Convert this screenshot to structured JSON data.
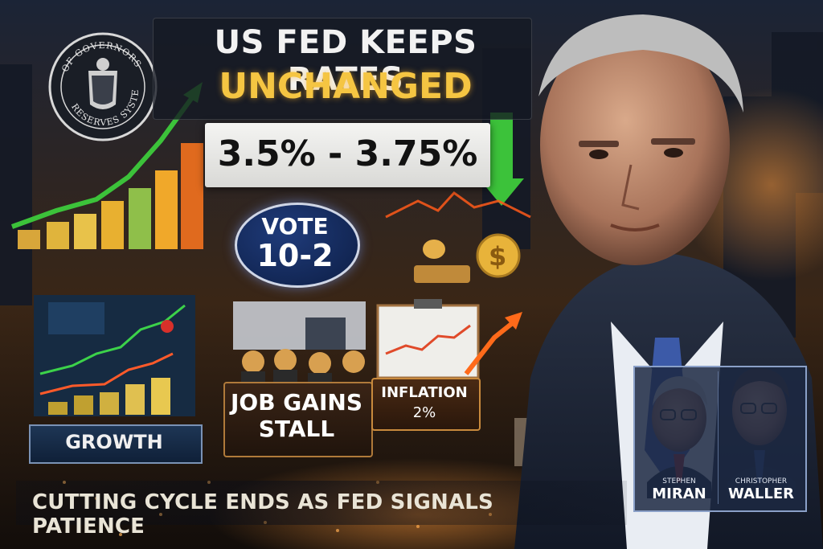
{
  "headline": {
    "line1": "US FED KEEPS RATES",
    "line2": "UNCHANGED"
  },
  "rate_range": "3.5% - 3.75%",
  "vote": {
    "label": "VOTE",
    "tally": "10-2"
  },
  "seal": {
    "top_text": "GOVERNORS",
    "bottom_text": "RESERVES"
  },
  "panels": {
    "growth": "GROWTH",
    "jobs_line1": "JOB GAINS",
    "jobs_line2": "STALL",
    "inflation_label": "INFLATION",
    "inflation_value": "2%"
  },
  "tagline": "CUTTING CYCLE ENDS AS FED SIGNALS PATIENCE",
  "dissenters": [
    {
      "first": "STEPHEN",
      "last": "MIRAN"
    },
    {
      "first": "CHRISTOPHER",
      "last": "WALLER"
    }
  ],
  "colors": {
    "headline_white": "#f2f2f2",
    "headline_gold": "#f5c542",
    "vote_blue": "#1f3b7a",
    "arrow_green": "#3cc23a",
    "arrow_orange": "#ff6a1a"
  }
}
